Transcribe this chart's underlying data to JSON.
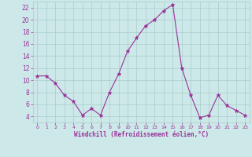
{
  "x": [
    0,
    1,
    2,
    3,
    4,
    5,
    6,
    7,
    8,
    9,
    10,
    11,
    12,
    13,
    14,
    15,
    16,
    17,
    18,
    19,
    20,
    21,
    22,
    23
  ],
  "y": [
    10.7,
    10.7,
    9.5,
    7.5,
    6.5,
    4.2,
    5.3,
    4.2,
    8.0,
    11.0,
    14.8,
    17.0,
    19.0,
    20.0,
    21.5,
    22.5,
    12.0,
    7.5,
    3.8,
    4.2,
    7.5,
    5.8,
    5.0,
    4.2
  ],
  "line_color": "#993399",
  "marker": "*",
  "marker_color": "#993399",
  "bg_color": "#cce8e8",
  "grid_color": "#aacccc",
  "xlabel": "Windchill (Refroidissement éolien,°C)",
  "xlabel_color": "#993399",
  "tick_color": "#993399",
  "ylim": [
    3.0,
    23.0
  ],
  "xlim": [
    -0.5,
    23.5
  ],
  "yticks": [
    4,
    6,
    8,
    10,
    12,
    14,
    16,
    18,
    20,
    22
  ],
  "xticks": [
    0,
    1,
    2,
    3,
    4,
    5,
    6,
    7,
    8,
    9,
    10,
    11,
    12,
    13,
    14,
    15,
    16,
    17,
    18,
    19,
    20,
    21,
    22,
    23
  ]
}
